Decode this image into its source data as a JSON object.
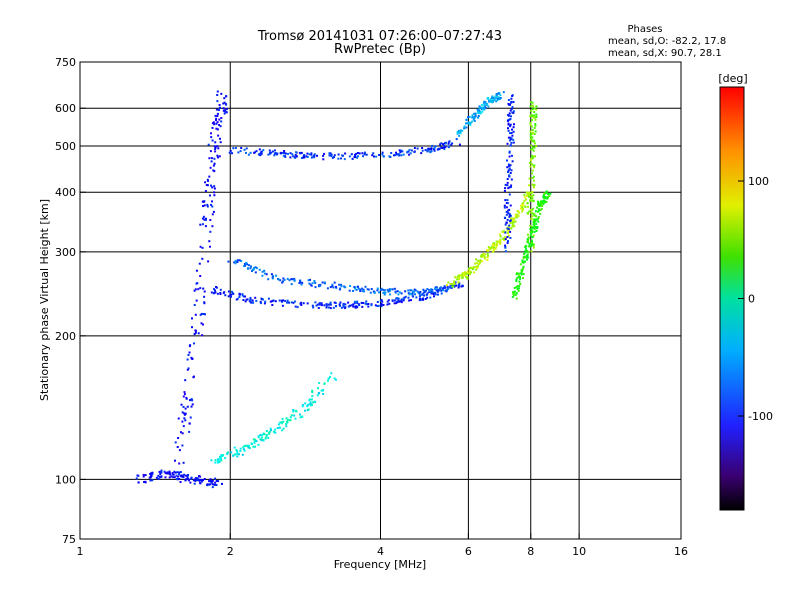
{
  "chart_data": {
    "type": "scatter",
    "title": "Tromsø 20141031 07:26:00–07:27:43",
    "subtitle": "RwPretec (Bp)",
    "xlabel": "Frequency [MHz]",
    "ylabel": "Stationary phase Virtual Height [km]",
    "x_scale": "log",
    "y_scale": "log",
    "xlim": [
      1,
      16
    ],
    "ylim": [
      75,
      750
    ],
    "x_ticks": [
      1,
      2,
      4,
      6,
      8,
      10,
      16
    ],
    "x_tick_labels": [
      "1",
      "2",
      "4",
      "6",
      "8",
      "10",
      "16"
    ],
    "x_grid_lines": [
      2,
      4,
      6,
      8,
      10
    ],
    "y_ticks": [
      75,
      100,
      200,
      300,
      400,
      500,
      600,
      750
    ],
    "y_tick_labels": [
      "75",
      "100",
      "200",
      "300",
      "400",
      "500",
      "600",
      "750"
    ],
    "y_grid_lines": [
      100,
      200,
      300,
      400,
      500,
      600
    ],
    "grid": true,
    "annotation": {
      "heading": "Phases",
      "line_o": "mean, sd,O: -82.2, 17.8",
      "line_x": "mean, sd,X:  90.7, 28.1"
    },
    "colorbar": {
      "label": "[deg]",
      "min": -180,
      "max": 180,
      "ticks": [
        100,
        0,
        -100
      ],
      "tick_labels": [
        "100",
        "0",
        "-100"
      ],
      "colormap": "rainbow"
    },
    "traces": [
      {
        "x": [
          1.55,
          1.65,
          1.75,
          1.82,
          1.88,
          1.95
        ],
        "y": [
          100,
          150,
          250,
          400,
          550,
          640
        ],
        "phase": -110,
        "spread": 0.06
      },
      {
        "x": [
          1.85,
          2.2,
          2.8,
          3.5,
          4.2,
          5.0,
          5.8
        ],
        "y": [
          250,
          238,
          232,
          232,
          235,
          243,
          258
        ],
        "phase": -100,
        "spread": 0.03
      },
      {
        "x": [
          2.0,
          2.5,
          3.2,
          4.0,
          4.8,
          5.6
        ],
        "y": [
          290,
          262,
          255,
          248,
          246,
          255
        ],
        "phase": -80,
        "spread": 0.03
      },
      {
        "x": [
          5.5,
          6.0,
          6.5,
          7.0,
          7.5,
          8.0
        ],
        "y": [
          255,
          270,
          295,
          320,
          355,
          400
        ],
        "phase": 90,
        "spread": 0.03
      },
      {
        "x": [
          2.0,
          2.5,
          3.0,
          4.0,
          5.0,
          5.8
        ],
        "y": [
          490,
          482,
          475,
          478,
          492,
          510
        ],
        "phase": -95,
        "spread": 0.03
      },
      {
        "x": [
          5.7,
          6.2,
          6.6,
          7.0
        ],
        "y": [
          530,
          580,
          620,
          640
        ],
        "phase": -60,
        "spread": 0.03
      },
      {
        "x": [
          7.2,
          7.2,
          7.3,
          7.3
        ],
        "y": [
          300,
          400,
          520,
          640
        ],
        "phase": -100,
        "spread": 0.03
      },
      {
        "x": [
          8.0,
          8.0,
          8.1,
          8.1
        ],
        "y": [
          300,
          400,
          520,
          620
        ],
        "phase": 70,
        "spread": 0.03
      },
      {
        "x": [
          7.4,
          7.7,
          8.0,
          8.3,
          8.7
        ],
        "y": [
          240,
          280,
          320,
          370,
          400
        ],
        "phase": 40,
        "spread": 0.03
      },
      {
        "x": [
          1.85,
          2.1,
          2.4,
          2.8,
          3.2
        ],
        "y": [
          110,
          115,
          125,
          140,
          165
        ],
        "phase": -30,
        "spread": 0.04
      },
      {
        "x": [
          1.3,
          1.5,
          1.7,
          1.9
        ],
        "y": [
          100,
          103,
          100,
          98
        ],
        "phase": -110,
        "spread": 0.04
      }
    ]
  }
}
